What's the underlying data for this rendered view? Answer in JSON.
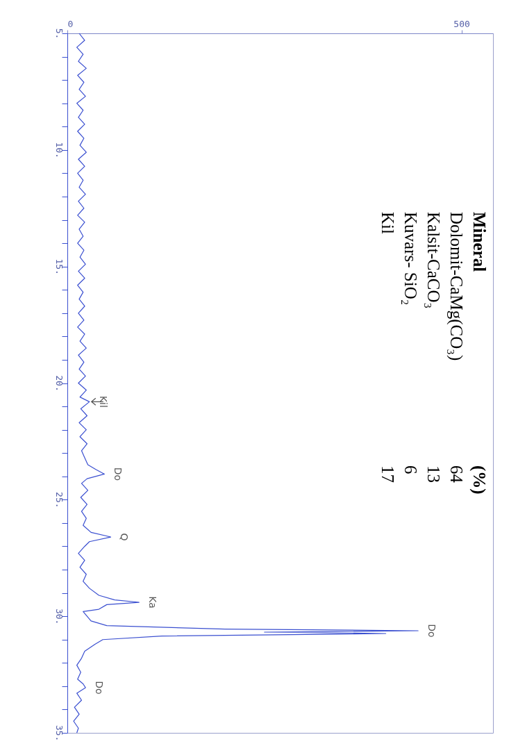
{
  "chart_data": {
    "type": "line",
    "orientation": "horizontal",
    "line_style": "solid",
    "grid": false,
    "legend": false,
    "x": [
      5.0,
      5.3,
      5.6,
      5.9,
      6.2,
      6.5,
      6.8,
      7.1,
      7.4,
      7.7,
      8.0,
      8.3,
      8.6,
      8.9,
      9.2,
      9.5,
      9.8,
      10.1,
      10.4,
      10.7,
      11.0,
      11.3,
      11.6,
      11.9,
      12.2,
      12.5,
      12.8,
      13.1,
      13.4,
      13.7,
      14.0,
      14.3,
      14.6,
      14.9,
      15.2,
      15.5,
      15.8,
      16.1,
      16.4,
      16.7,
      17.0,
      17.3,
      17.6,
      17.9,
      18.2,
      18.5,
      18.8,
      19.1,
      19.4,
      19.7,
      20.0,
      20.3,
      20.6,
      20.8,
      21.1,
      21.4,
      21.7,
      22.0,
      22.3,
      22.6,
      22.9,
      23.2,
      23.5,
      23.7,
      23.9,
      24.1,
      24.3,
      24.6,
      24.9,
      25.2,
      25.5,
      25.8,
      26.1,
      26.4,
      26.6,
      26.8,
      27.0,
      27.3,
      27.6,
      27.9,
      28.2,
      28.5,
      28.8,
      29.1,
      29.3,
      29.4,
      29.5,
      29.7,
      29.8,
      30.0,
      30.2,
      30.4,
      30.55,
      30.62,
      30.68,
      30.74,
      30.85,
      31.0,
      31.2,
      31.5,
      31.8,
      32.1,
      32.4,
      32.7,
      32.9,
      33.06,
      33.3,
      33.6,
      33.9,
      34.2,
      34.5,
      34.8,
      35.0
    ],
    "series": [
      {
        "color": "#3a4fd0",
        "values": [
          15,
          22,
          12,
          20,
          14,
          24,
          13,
          21,
          15,
          23,
          12,
          20,
          14,
          22,
          13,
          21,
          16,
          24,
          14,
          22,
          13,
          20,
          15,
          23,
          14,
          21,
          13,
          22,
          15,
          20,
          13,
          21,
          16,
          23,
          14,
          22,
          13,
          20,
          15,
          22,
          14,
          21,
          13,
          22,
          16,
          24,
          14,
          21,
          15,
          23,
          14,
          24,
          16,
          28,
          17,
          25,
          15,
          24,
          16,
          25,
          18,
          22,
          26,
          36,
          47,
          25,
          18,
          26,
          17,
          25,
          18,
          24,
          20,
          30,
          55,
          28,
          22,
          14,
          22,
          16,
          24,
          20,
          28,
          40,
          60,
          91,
          50,
          40,
          20,
          25,
          30,
          50,
          200,
          445,
          250,
          404,
          120,
          45,
          35,
          22,
          18,
          12,
          17,
          13,
          20,
          23,
          12,
          18,
          9,
          15,
          8,
          14,
          12
        ]
      }
    ],
    "xlim": [
      0,
      540
    ],
    "xticks": [
      0,
      500
    ],
    "ylim": [
      35,
      5
    ],
    "yticks": [
      {
        "value": 5,
        "label": "5."
      },
      {
        "value": 6,
        "label": null
      },
      {
        "value": 7,
        "label": null
      },
      {
        "value": 8,
        "label": null
      },
      {
        "value": 9,
        "label": null
      },
      {
        "value": 10,
        "label": "10."
      },
      {
        "value": 11,
        "label": null
      },
      {
        "value": 12,
        "label": null
      },
      {
        "value": 13,
        "label": null
      },
      {
        "value": 14,
        "label": null
      },
      {
        "value": 15,
        "label": "15."
      },
      {
        "value": 16,
        "label": null
      },
      {
        "value": 17,
        "label": null
      },
      {
        "value": 18,
        "label": null
      },
      {
        "value": 19,
        "label": null
      },
      {
        "value": 20,
        "label": "20."
      },
      {
        "value": 21,
        "label": null
      },
      {
        "value": 22,
        "label": null
      },
      {
        "value": 23,
        "label": null
      },
      {
        "value": 24,
        "label": null
      },
      {
        "value": 25,
        "label": "25."
      },
      {
        "value": 26,
        "label": null
      },
      {
        "value": 27,
        "label": null
      },
      {
        "value": 28,
        "label": null
      },
      {
        "value": 29,
        "label": null
      },
      {
        "value": 30,
        "label": "30."
      },
      {
        "value": 31,
        "label": null
      },
      {
        "value": 32,
        "label": null
      },
      {
        "value": 33,
        "label": null
      },
      {
        "value": 34,
        "label": null
      },
      {
        "value": 35,
        "label": "35."
      }
    ],
    "annotations": [
      {
        "text": "Kil",
        "x": 28,
        "y": 20.8
      },
      {
        "text": "Do",
        "x": 47,
        "y": 23.9
      },
      {
        "text": "Q",
        "x": 55,
        "y": 26.6
      },
      {
        "text": "Ka",
        "x": 91,
        "y": 29.4
      },
      {
        "text": "Do",
        "x": 445,
        "y": 30.62
      },
      {
        "text": "Do",
        "x": 23,
        "y": 33.06
      },
      "Mineral",
      "(%)",
      "Dolomit-CaMg(CO₃)",
      "64",
      "Kalsit-CaCO₃",
      "13",
      "Kuvars- SiO₂",
      "6",
      "Kil",
      "17"
    ]
  }
}
